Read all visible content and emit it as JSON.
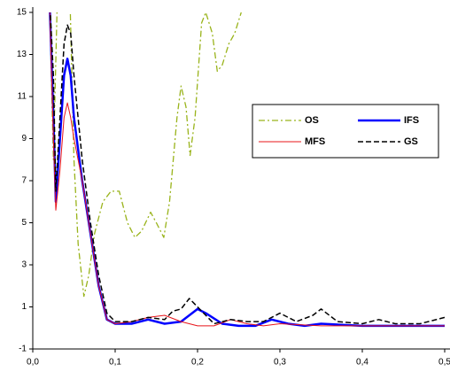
{
  "chart_data": {
    "type": "line",
    "xlim": [
      0,
      0.5
    ],
    "ylim": [
      -1,
      15
    ],
    "xticks": [
      {
        "value": 0,
        "label": "0,0"
      },
      {
        "value": 0.1,
        "label": "0,1"
      },
      {
        "value": 0.2,
        "label": "0,2"
      },
      {
        "value": 0.3,
        "label": "0,3"
      },
      {
        "value": 0.4,
        "label": "0,4"
      },
      {
        "value": 0.5,
        "label": "0,5"
      }
    ],
    "yticks": [
      -1,
      1,
      3,
      5,
      7,
      9,
      11,
      13,
      15
    ],
    "series": [
      {
        "name": "OS",
        "color": "#99b31a",
        "style": "dashdot",
        "x": [
          0.02,
          0.025,
          0.03,
          0.045,
          0.05,
          0.055,
          0.062,
          0.068,
          0.075,
          0.085,
          0.095,
          0.105,
          0.115,
          0.124,
          0.132,
          0.143,
          0.15,
          0.159,
          0.166,
          0.175,
          0.18,
          0.186,
          0.191,
          0.197,
          0.205,
          0.21,
          0.218,
          0.224,
          0.23,
          0.238,
          0.245,
          0.253
        ],
        "values": [
          16,
          8,
          16,
          16,
          8,
          4,
          1.5,
          2.5,
          4.5,
          6,
          6.5,
          6.5,
          5,
          4.3,
          4.6,
          5.5,
          5,
          4.3,
          6,
          10,
          11.5,
          10.5,
          8.2,
          10,
          14.5,
          15,
          14,
          12.2,
          12.5,
          13.5,
          14,
          15
        ]
      },
      {
        "name": "IFS",
        "color": "#0000ff",
        "style": "thick",
        "x": [
          0.02,
          0.025,
          0.028,
          0.033,
          0.038,
          0.042,
          0.046,
          0.05,
          0.06,
          0.07,
          0.08,
          0.09,
          0.1,
          0.12,
          0.14,
          0.15,
          0.16,
          0.18,
          0.2,
          0.21,
          0.23,
          0.25,
          0.27,
          0.29,
          0.31,
          0.33,
          0.35,
          0.4,
          0.45,
          0.5
        ],
        "values": [
          16,
          10,
          6,
          9,
          12,
          12.8,
          12,
          10,
          7,
          4.5,
          2,
          0.4,
          0.2,
          0.2,
          0.4,
          0.3,
          0.2,
          0.3,
          0.9,
          0.7,
          0.2,
          0.1,
          0.1,
          0.4,
          0.2,
          0.1,
          0.2,
          0.1,
          0.1,
          0.1
        ]
      },
      {
        "name": "MFS",
        "color": "#e8141a",
        "style": "thin",
        "x": [
          0.02,
          0.025,
          0.028,
          0.033,
          0.038,
          0.042,
          0.046,
          0.05,
          0.06,
          0.07,
          0.08,
          0.09,
          0.1,
          0.12,
          0.14,
          0.16,
          0.18,
          0.2,
          0.22,
          0.24,
          0.26,
          0.28,
          0.3,
          0.35,
          0.4,
          0.45,
          0.5
        ],
        "values": [
          16,
          9,
          5.6,
          7.5,
          10,
          10.7,
          10,
          9,
          7,
          4.5,
          2,
          0.4,
          0.2,
          0.3,
          0.5,
          0.6,
          0.3,
          0.1,
          0.1,
          0.4,
          0.2,
          0.1,
          0.2,
          0.1,
          0.1,
          0.1,
          0.1
        ]
      },
      {
        "name": "GS",
        "color": "#000000",
        "style": "dashed",
        "x": [
          0.02,
          0.025,
          0.028,
          0.033,
          0.038,
          0.042,
          0.046,
          0.05,
          0.06,
          0.07,
          0.08,
          0.09,
          0.1,
          0.12,
          0.14,
          0.16,
          0.17,
          0.18,
          0.19,
          0.2,
          0.22,
          0.24,
          0.26,
          0.28,
          0.3,
          0.32,
          0.34,
          0.35,
          0.37,
          0.4,
          0.42,
          0.44,
          0.47,
          0.5
        ],
        "values": [
          16,
          12,
          6.5,
          10,
          13.5,
          14.4,
          14,
          12,
          8,
          5,
          2.5,
          0.7,
          0.3,
          0.3,
          0.5,
          0.4,
          0.8,
          0.9,
          1.4,
          1,
          0.2,
          0.4,
          0.3,
          0.3,
          0.7,
          0.3,
          0.6,
          0.9,
          0.3,
          0.2,
          0.4,
          0.2,
          0.2,
          0.5
        ]
      }
    ]
  }
}
